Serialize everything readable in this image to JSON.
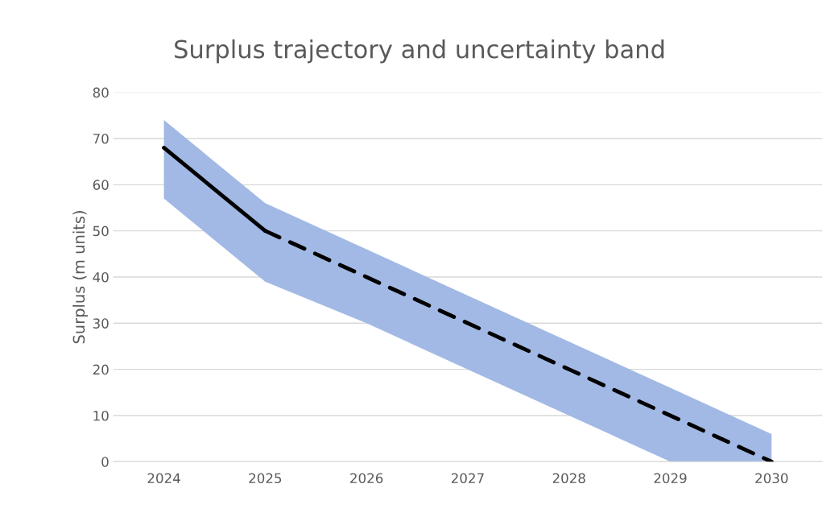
{
  "chart_data": {
    "type": "line",
    "title": "Surplus trajectory and uncertainty band",
    "ylabel": "Surplus (m units)",
    "categories": [
      "2024",
      "2025",
      "2026",
      "2027",
      "2028",
      "2029",
      "2030"
    ],
    "series": [
      {
        "color": "#000000",
        "line_style": "solid",
        "values": [
          68,
          50,
          null,
          null,
          null,
          null,
          null
        ],
        "lower": [
          57,
          39,
          30,
          20,
          10,
          0,
          0
        ],
        "upper": [
          74,
          56,
          46,
          36,
          26,
          16,
          6
        ]
      },
      {
        "color": "#000000",
        "line_style": "dashed",
        "values": [
          null,
          50,
          40,
          30,
          20,
          10,
          0
        ]
      }
    ],
    "ylim": [
      0,
      80
    ],
    "yticks": [
      0,
      10,
      20,
      30,
      40,
      50,
      60,
      70,
      80
    ],
    "grid": "y",
    "legend": false
  }
}
